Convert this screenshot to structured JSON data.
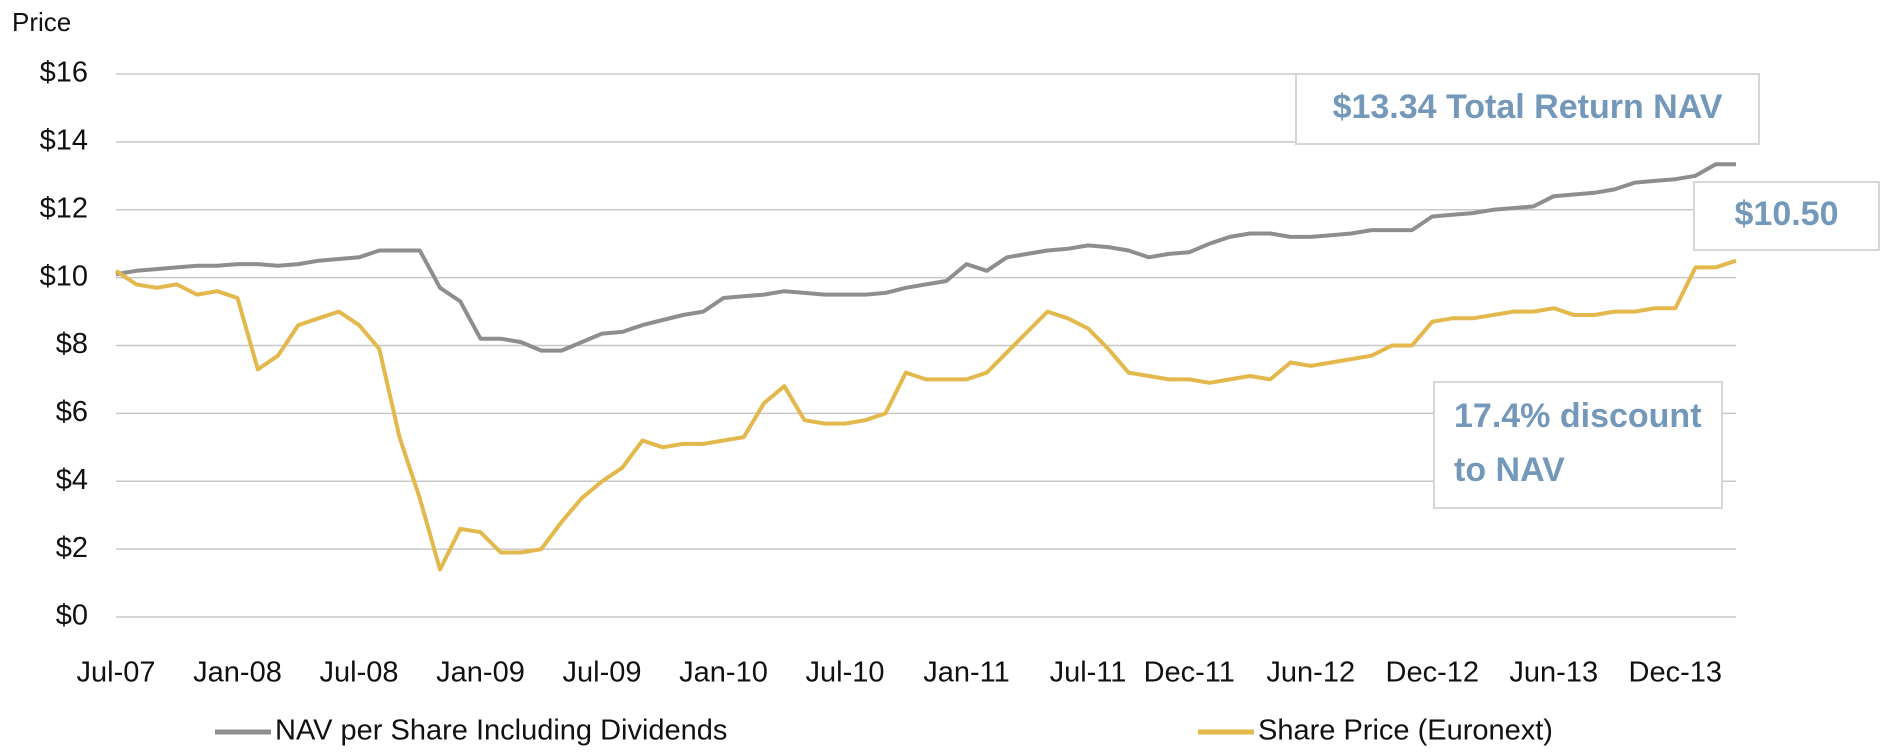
{
  "chart_data": {
    "type": "line",
    "y_label": "Price",
    "categories": [
      "Jul-07",
      null,
      null,
      null,
      null,
      null,
      "Jan-08",
      null,
      null,
      null,
      null,
      null,
      "Jul-08",
      null,
      null,
      null,
      null,
      null,
      "Jan-09",
      null,
      null,
      null,
      null,
      null,
      "Jul-09",
      null,
      null,
      null,
      null,
      null,
      "Jan-10",
      null,
      null,
      null,
      null,
      null,
      "Jul-10",
      null,
      null,
      null,
      null,
      null,
      "Jan-11",
      null,
      null,
      null,
      null,
      null,
      "Jul-11",
      null,
      null,
      null,
      null,
      "Dec-11",
      null,
      null,
      null,
      null,
      null,
      "Jun-12",
      null,
      null,
      null,
      null,
      null,
      "Dec-12",
      null,
      null,
      null,
      null,
      null,
      "Jun-13",
      null,
      null,
      null,
      null,
      null,
      "Dec-13",
      null,
      null,
      null
    ],
    "series": [
      {
        "name": "NAV per Share Including Dividends",
        "color": "#8e8e8e",
        "values": [
          10.1,
          10.2,
          10.25,
          10.3,
          10.35,
          10.35,
          10.4,
          10.4,
          10.35,
          10.4,
          10.5,
          10.55,
          10.6,
          10.8,
          10.8,
          10.8,
          9.7,
          9.3,
          8.2,
          8.2,
          8.1,
          7.85,
          7.85,
          8.1,
          8.35,
          8.4,
          8.6,
          8.75,
          8.9,
          9.0,
          9.4,
          9.45,
          9.5,
          9.6,
          9.55,
          9.5,
          9.5,
          9.5,
          9.55,
          9.7,
          9.8,
          9.9,
          10.4,
          10.2,
          10.6,
          10.7,
          10.8,
          10.85,
          10.95,
          10.9,
          10.8,
          10.6,
          10.7,
          10.75,
          11.0,
          11.2,
          11.3,
          11.3,
          11.2,
          11.2,
          11.25,
          11.3,
          11.4,
          11.4,
          11.4,
          11.8,
          11.85,
          11.9,
          12.0,
          12.05,
          12.1,
          12.4,
          12.45,
          12.5,
          12.6,
          12.8,
          12.85,
          12.9,
          13.0,
          13.34,
          13.34
        ]
      },
      {
        "name": "Share Price (Euronext)",
        "color": "#e3b84c",
        "values": [
          10.2,
          9.8,
          9.7,
          9.8,
          9.5,
          9.6,
          9.4,
          7.3,
          7.7,
          8.6,
          8.8,
          9.0,
          8.6,
          7.9,
          5.3,
          3.5,
          1.4,
          2.6,
          2.5,
          1.9,
          1.9,
          2.0,
          2.8,
          3.5,
          4.0,
          4.4,
          5.2,
          5.0,
          5.1,
          5.1,
          5.2,
          5.3,
          6.3,
          6.8,
          5.8,
          5.7,
          5.7,
          5.8,
          6.0,
          7.2,
          7.0,
          7.0,
          7.0,
          7.2,
          7.8,
          8.4,
          9.0,
          8.8,
          8.5,
          7.9,
          7.2,
          7.1,
          7.0,
          7.0,
          6.9,
          7.0,
          7.1,
          7.0,
          7.5,
          7.4,
          7.5,
          7.6,
          7.7,
          8.0,
          8.0,
          8.7,
          8.8,
          8.8,
          8.9,
          9.0,
          9.0,
          9.1,
          8.9,
          8.9,
          9.0,
          9.0,
          9.1,
          9.1,
          10.3,
          10.3,
          10.5
        ]
      }
    ],
    "ylim": [
      0,
      16
    ],
    "yticks": [
      {
        "value": 0,
        "label": "$0"
      },
      {
        "value": 2,
        "label": "$2"
      },
      {
        "value": 4,
        "label": "$4"
      },
      {
        "value": 6,
        "label": "$6"
      },
      {
        "value": 8,
        "label": "$8"
      },
      {
        "value": 10,
        "label": "$10"
      },
      {
        "value": 12,
        "label": "$12"
      },
      {
        "value": 14,
        "label": "$14"
      },
      {
        "value": 16,
        "label": "$16"
      }
    ],
    "grid": true,
    "annotations": [
      {
        "lines": [
          "$13.34 Total Return NAV"
        ]
      },
      {
        "lines": [
          "$10.50"
        ]
      },
      {
        "lines": [
          "17.4% discount",
          "to NAV"
        ]
      }
    ]
  }
}
